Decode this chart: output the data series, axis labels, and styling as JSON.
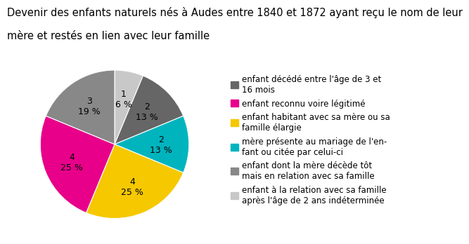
{
  "title_line1": "Devenir des enfants naturels nés à Audes entre 1840 et 1872 ayant reçu le nom de leur",
  "title_line2": "mère et restés en lien avec leur famille",
  "slices": [
    1,
    2,
    2,
    4,
    4,
    3
  ],
  "percentages": [
    "1\n6 %",
    "2\n13 %",
    "2\n13 %",
    "4\n25 %",
    "4\n25 %",
    "3\n19 %"
  ],
  "colors": [
    "#c8c8c8",
    "#666666",
    "#00b4be",
    "#f5c800",
    "#e8008a",
    "#888888"
  ],
  "legend_labels": [
    "enfant décédé entre l'âge de 3 et\n16 mois",
    "enfant reconnu voire légitimé",
    "enfant habitant avec sa mère ou sa\nfamille élargie",
    "mère présente au mariage de l'en-\nfant ou citée par celui-ci",
    "enfant dont la mère décède tôt\nmais en relation avec sa famille",
    "enfant à la relation avec sa famille\naprès l'âge de 2 ans indéterminée"
  ],
  "legend_colors": [
    "#666666",
    "#e8008a",
    "#f5c800",
    "#00b4be",
    "#888888",
    "#c8c8c8"
  ],
  "startangle": 90,
  "title_fontsize": 10.5,
  "label_fontsize": 9,
  "legend_fontsize": 8.5
}
